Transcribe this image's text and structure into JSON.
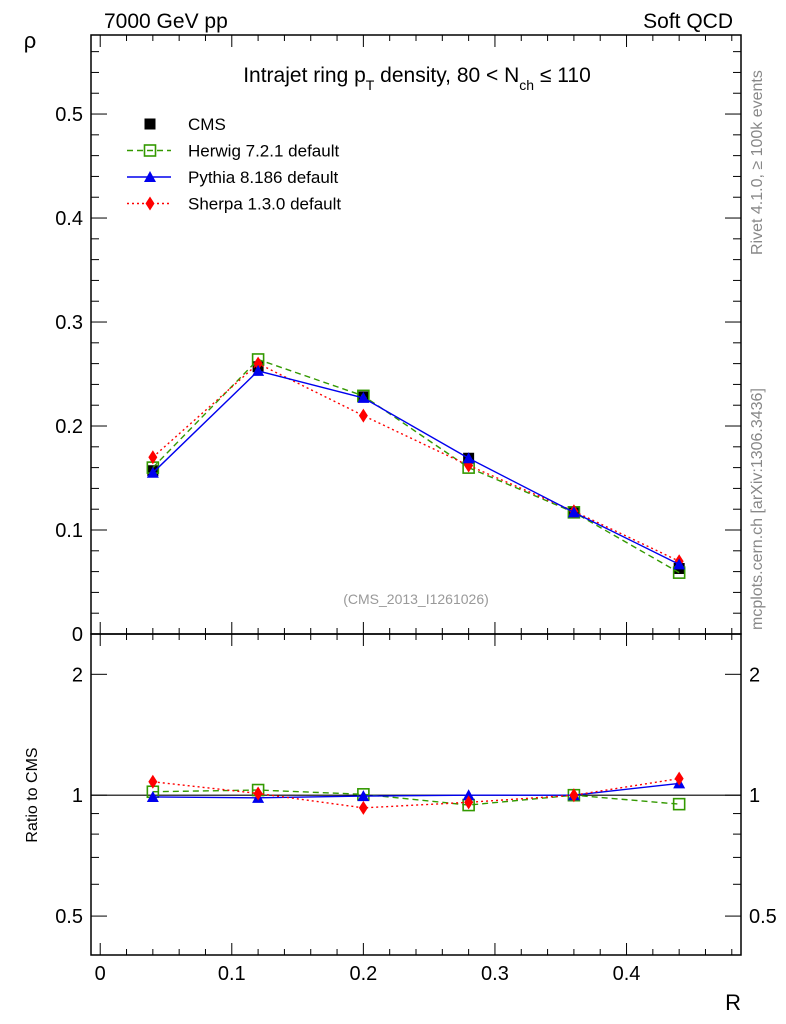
{
  "header": {
    "left": "7000 GeV pp",
    "right": "Soft QCD"
  },
  "side_labels": {
    "rivet": "Rivet 4.1.0, ≥ 100k events",
    "mcplots": "mcplots.cern.ch [arXiv:1306.3436]"
  },
  "chart_data": [
    {
      "type": "line",
      "title_parts": {
        "main": "Intrajet ring p",
        "sub1": "T",
        "mid": " density, 80 < N",
        "sub2": "ch",
        "end": " ≤ 110"
      },
      "watermark": "(CMS_2013_I1261026)",
      "xlabel": "R",
      "ylabel": "ρ",
      "xlim": [
        -0.007,
        0.487
      ],
      "ylim": [
        0,
        0.576
      ],
      "xticks": [
        0,
        0.1,
        0.2,
        0.3,
        0.4
      ],
      "xtick_labels": [
        "0",
        "0.1",
        "0.2",
        "0.3",
        "0.4"
      ],
      "yticks": [
        0,
        0.1,
        0.2,
        0.3,
        0.4,
        0.5
      ],
      "ytick_labels": [
        "0",
        "0.1",
        "0.2",
        "0.3",
        "0.4",
        "0.5"
      ],
      "x": [
        0.04,
        0.12,
        0.2,
        0.28,
        0.36,
        0.44
      ],
      "legend_position": "top-left",
      "series": [
        {
          "name": "CMS",
          "values": [
            0.157,
            0.257,
            0.228,
            0.169,
            0.117,
            0.063
          ],
          "color": "#000000",
          "marker": "square",
          "line": "none"
        },
        {
          "name": "Herwig 7.2.1 default",
          "values": [
            0.16,
            0.264,
            0.229,
            0.16,
            0.117,
            0.059
          ],
          "color": "#339900",
          "marker": "open-square",
          "line": "dashed"
        },
        {
          "name": "Pythia 8.186 default",
          "values": [
            0.155,
            0.253,
            0.227,
            0.169,
            0.117,
            0.067
          ],
          "color": "#0000ee",
          "marker": "triangle",
          "line": "solid"
        },
        {
          "name": "Sherpa 1.3.0 default",
          "values": [
            0.17,
            0.26,
            0.21,
            0.162,
            0.118,
            0.07
          ],
          "color": "#ff0000",
          "marker": "diamond",
          "line": "dotted"
        }
      ]
    },
    {
      "type": "line",
      "ylabel": "Ratio to CMS",
      "yscale": "log",
      "ylim": [
        0.4,
        2.52
      ],
      "yticks": [
        0.5,
        1,
        2
      ],
      "ytick_labels": [
        "0.5",
        "1",
        "2"
      ],
      "x": [
        0.04,
        0.12,
        0.2,
        0.28,
        0.36,
        0.44
      ],
      "series": [
        {
          "name": "Herwig 7.2.1 default",
          "values": [
            1.02,
            1.03,
            1.005,
            0.945,
            1.0,
            0.95
          ]
        },
        {
          "name": "Pythia 8.186 default",
          "values": [
            0.99,
            0.985,
            0.995,
            1.0,
            1.0,
            1.07
          ]
        },
        {
          "name": "Sherpa 1.3.0 default",
          "values": [
            1.08,
            1.01,
            0.93,
            0.96,
            1.0,
            1.1
          ]
        }
      ]
    }
  ]
}
